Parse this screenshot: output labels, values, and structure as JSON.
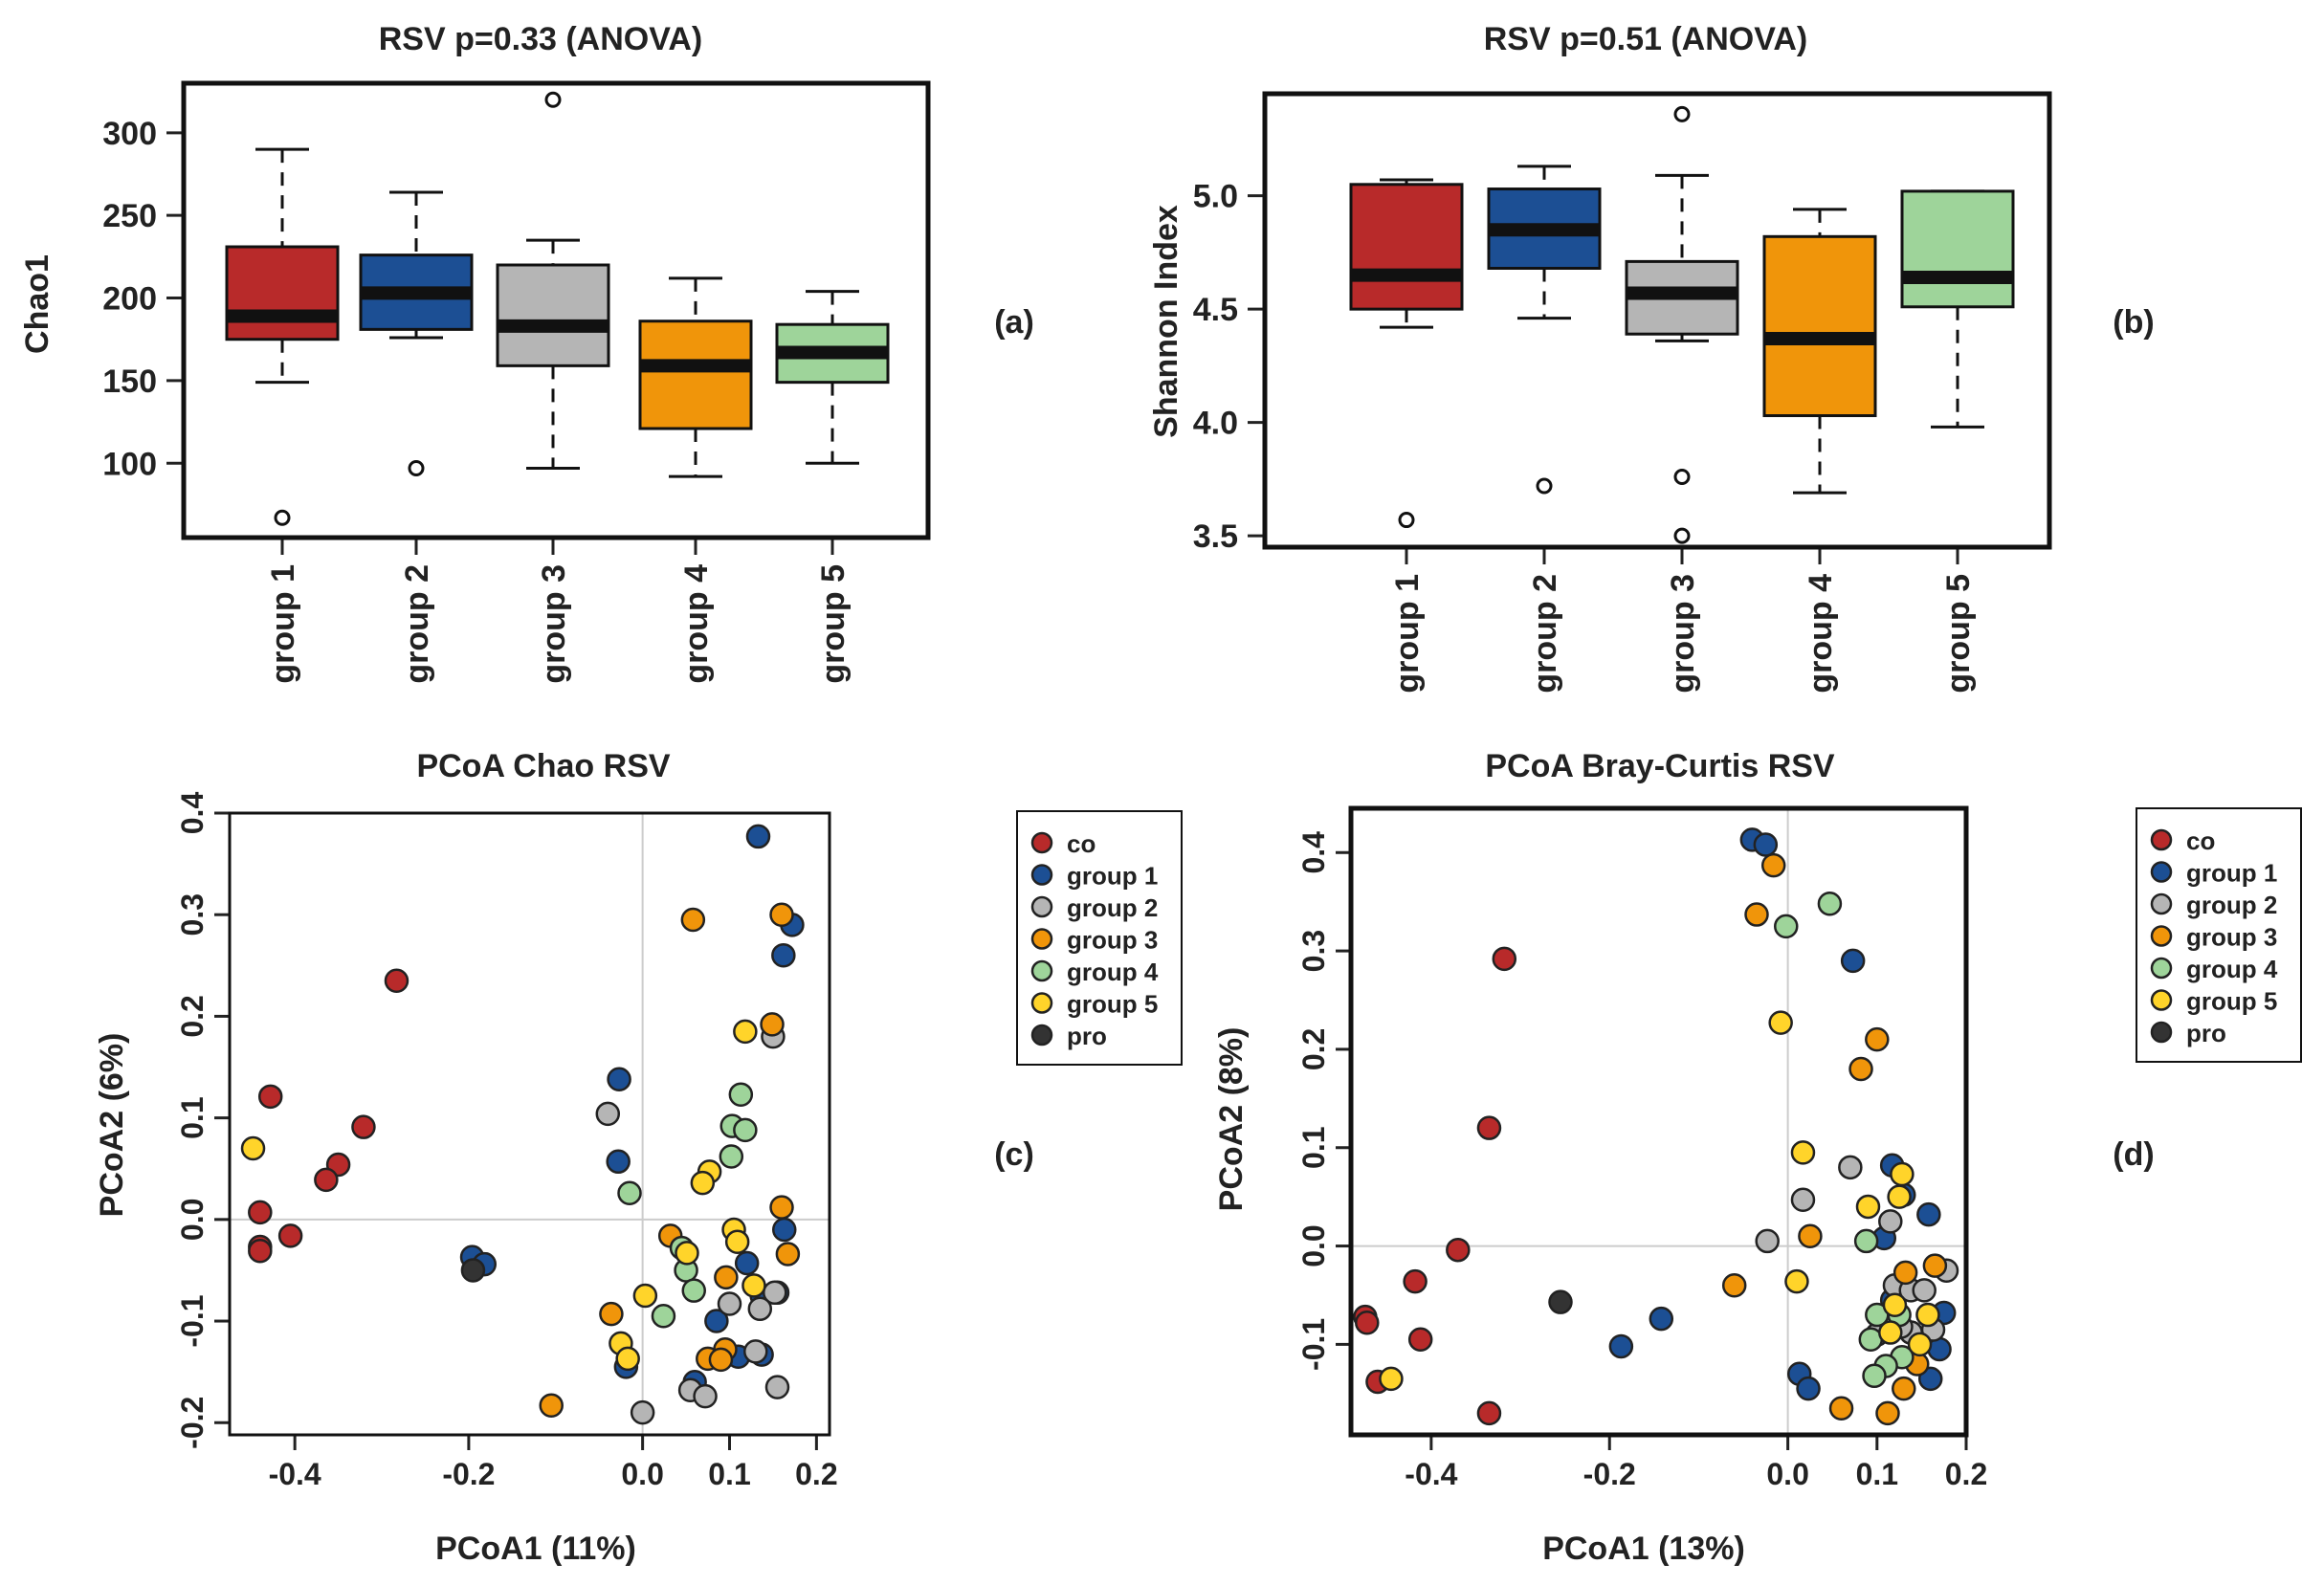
{
  "colors": {
    "co": "#b82a2a",
    "group 1": "#1c4f94",
    "group 2": "#b5b5b5",
    "group 3": "#f0950a",
    "group 4": "#9ed49a",
    "group 5": "#ffd42a",
    "pro": "#333333"
  },
  "chart_data": [
    {
      "id": "a",
      "type": "box",
      "panel_label": "(a)",
      "title": "RSV p=0.33 (ANOVA)",
      "xlabel": "",
      "ylabel": "Chao1",
      "ylim": [
        55,
        330
      ],
      "yticks": [
        100,
        150,
        200,
        250,
        300
      ],
      "categories": [
        "group 1",
        "group 2",
        "group 3",
        "group 4",
        "group 5"
      ],
      "boxes": [
        {
          "whislo": 149,
          "q1": 175,
          "med": 189,
          "q3": 231,
          "whishi": 290,
          "fliers": [
            67
          ],
          "color": "#b82a2a"
        },
        {
          "whislo": 176,
          "q1": 181,
          "med": 203,
          "q3": 226,
          "whishi": 264,
          "fliers": [
            97
          ],
          "color": "#1c4f94"
        },
        {
          "whislo": 97,
          "q1": 159,
          "med": 183,
          "q3": 220,
          "whishi": 235,
          "fliers": [
            320
          ],
          "color": "#b5b5b5"
        },
        {
          "whislo": 92,
          "q1": 121,
          "med": 159,
          "q3": 186,
          "whishi": 212,
          "fliers": [],
          "color": "#f0950a"
        },
        {
          "whislo": 100,
          "q1": 149,
          "med": 167,
          "q3": 184,
          "whishi": 204,
          "fliers": [],
          "color": "#9ed49a"
        }
      ]
    },
    {
      "id": "b",
      "type": "box",
      "panel_label": "(b)",
      "title": "RSV p=0.51 (ANOVA)",
      "xlabel": "",
      "ylabel": "Shannon Index",
      "ylim": [
        3.45,
        5.45
      ],
      "yticks": [
        3.5,
        4.0,
        4.5,
        5.0
      ],
      "ytick_labels": [
        "3.5",
        "4.0",
        "4.5",
        "5.0"
      ],
      "categories": [
        "group 1",
        "group 2",
        "group 3",
        "group 4",
        "group 5"
      ],
      "boxes": [
        {
          "whislo": 4.42,
          "q1": 4.5,
          "med": 4.65,
          "q3": 5.05,
          "whishi": 5.07,
          "fliers": [
            3.57
          ],
          "color": "#b82a2a"
        },
        {
          "whislo": 4.46,
          "q1": 4.68,
          "med": 4.85,
          "q3": 5.03,
          "whishi": 5.13,
          "fliers": [
            3.72
          ],
          "color": "#1c4f94"
        },
        {
          "whislo": 4.36,
          "q1": 4.39,
          "med": 4.57,
          "q3": 4.71,
          "whishi": 5.09,
          "fliers": [
            3.76,
            3.5,
            5.36
          ],
          "color": "#b5b5b5"
        },
        {
          "whislo": 3.69,
          "q1": 4.03,
          "med": 4.37,
          "q3": 4.82,
          "whishi": 4.94,
          "fliers": [],
          "color": "#f0950a"
        },
        {
          "whislo": 3.98,
          "q1": 4.51,
          "med": 4.64,
          "q3": 5.02,
          "whishi": 5.02,
          "fliers": [],
          "color": "#9ed49a"
        }
      ]
    },
    {
      "id": "c",
      "type": "scatter",
      "panel_label": "(c)",
      "title": "PCoA Chao  RSV",
      "xlabel": "PCoA1 (11%)",
      "ylabel": "PCoA2 (6%)",
      "xlim": [
        -0.475,
        0.215
      ],
      "ylim": [
        -0.212,
        0.4
      ],
      "xticks": [
        -0.4,
        -0.2,
        0.0,
        0.1,
        0.2
      ],
      "xtick_labels": [
        "-0.4",
        "-0.2",
        "0.0",
        "0.1",
        "0.2"
      ],
      "yticks": [
        -0.2,
        -0.1,
        0.0,
        0.1,
        0.2,
        0.3,
        0.4
      ],
      "ytick_labels": [
        "-0.2",
        "-0.1",
        "0.0",
        "0.1",
        "0.2",
        "0.3",
        "0.4"
      ],
      "legend_position": "right",
      "series": [
        {
          "name": "co",
          "points": [
            [
              -0.283,
              0.235
            ],
            [
              -0.428,
              0.121
            ],
            [
              -0.321,
              0.091
            ],
            [
              -0.35,
              0.054
            ],
            [
              -0.364,
              0.039
            ],
            [
              -0.44,
              0.007
            ],
            [
              -0.405,
              -0.016
            ],
            [
              -0.44,
              -0.027
            ],
            [
              -0.44,
              -0.031
            ]
          ]
        },
        {
          "name": "group 1",
          "points": [
            [
              0.133,
              0.377
            ],
            [
              0.172,
              0.29
            ],
            [
              0.162,
              0.26
            ],
            [
              -0.027,
              0.138
            ],
            [
              -0.028,
              0.057
            ],
            [
              -0.196,
              -0.037
            ],
            [
              -0.182,
              -0.044
            ],
            [
              -0.019,
              -0.145
            ],
            [
              0.163,
              -0.01
            ],
            [
              0.12,
              -0.043
            ],
            [
              0.085,
              -0.1
            ],
            [
              0.137,
              -0.075
            ],
            [
              0.06,
              -0.16
            ],
            [
              0.11,
              -0.135
            ],
            [
              0.137,
              -0.133
            ],
            [
              0.155,
              -0.072
            ]
          ]
        },
        {
          "name": "group 2",
          "points": [
            [
              -0.04,
              0.104
            ],
            [
              0.15,
              0.18
            ],
            [
              0.152,
              -0.072
            ],
            [
              0.135,
              -0.088
            ],
            [
              0.1,
              -0.083
            ],
            [
              0.13,
              -0.13
            ],
            [
              0.055,
              -0.168
            ],
            [
              0.072,
              -0.174
            ],
            [
              0.155,
              -0.165
            ],
            [
              0.0,
              -0.19
            ]
          ]
        },
        {
          "name": "group 3",
          "points": [
            [
              0.058,
              0.295
            ],
            [
              0.16,
              0.3
            ],
            [
              0.149,
              0.192
            ],
            [
              0.16,
              0.012
            ],
            [
              0.032,
              -0.016
            ],
            [
              0.096,
              -0.057
            ],
            [
              0.167,
              -0.034
            ],
            [
              -0.036,
              -0.093
            ],
            [
              0.075,
              -0.137
            ],
            [
              0.095,
              -0.128
            ],
            [
              0.09,
              -0.138
            ],
            [
              -0.105,
              -0.183
            ]
          ]
        },
        {
          "name": "group 4",
          "points": [
            [
              0.113,
              0.123
            ],
            [
              0.103,
              0.092
            ],
            [
              0.118,
              0.088
            ],
            [
              0.102,
              0.062
            ],
            [
              -0.015,
              0.026
            ],
            [
              0.045,
              -0.028
            ],
            [
              0.05,
              -0.05
            ],
            [
              0.059,
              -0.07
            ],
            [
              0.024,
              -0.095
            ]
          ]
        },
        {
          "name": "group 5",
          "points": [
            [
              0.118,
              0.185
            ],
            [
              -0.448,
              0.07
            ],
            [
              0.077,
              0.047
            ],
            [
              0.069,
              0.036
            ],
            [
              0.105,
              -0.01
            ],
            [
              0.109,
              -0.022
            ],
            [
              0.051,
              -0.033
            ],
            [
              0.128,
              -0.065
            ],
            [
              0.003,
              -0.075
            ],
            [
              -0.025,
              -0.122
            ],
            [
              -0.017,
              -0.137
            ]
          ]
        },
        {
          "name": "pro",
          "points": [
            [
              -0.195,
              -0.05
            ]
          ]
        }
      ]
    },
    {
      "id": "d",
      "type": "scatter",
      "panel_label": "(d)",
      "title": "PCoA Bray-Curtis  RSV",
      "xlabel": "PCoA1 (13%)",
      "ylabel": "PCoA2 (8%)",
      "xlim": [
        -0.49,
        0.2
      ],
      "ylim": [
        -0.192,
        0.445
      ],
      "xticks": [
        -0.4,
        -0.2,
        0.0,
        0.1,
        0.2
      ],
      "xtick_labels": [
        "-0.4",
        "-0.2",
        "0.0",
        "0.1",
        "0.2"
      ],
      "yticks": [
        -0.1,
        0.0,
        0.1,
        0.2,
        0.3,
        0.4
      ],
      "ytick_labels": [
        "-0.1",
        "0.0",
        "0.1",
        "0.2",
        "0.3",
        "0.4"
      ],
      "legend_position": "right",
      "series": [
        {
          "name": "co",
          "points": [
            [
              -0.318,
              0.292
            ],
            [
              -0.335,
              0.12
            ],
            [
              -0.37,
              -0.004
            ],
            [
              -0.418,
              -0.036
            ],
            [
              -0.474,
              -0.072
            ],
            [
              -0.472,
              -0.078
            ],
            [
              -0.412,
              -0.095
            ],
            [
              -0.46,
              -0.138
            ],
            [
              -0.335,
              -0.17
            ]
          ]
        },
        {
          "name": "group 1",
          "points": [
            [
              -0.04,
              0.413
            ],
            [
              -0.025,
              0.408
            ],
            [
              0.073,
              0.29
            ],
            [
              0.117,
              0.082
            ],
            [
              0.13,
              0.052
            ],
            [
              0.108,
              0.008
            ],
            [
              0.158,
              0.032
            ],
            [
              0.117,
              -0.055
            ],
            [
              0.175,
              -0.068
            ],
            [
              0.16,
              -0.095
            ],
            [
              0.15,
              -0.097
            ],
            [
              0.17,
              -0.105
            ],
            [
              0.16,
              -0.135
            ],
            [
              0.013,
              -0.13
            ],
            [
              0.023,
              -0.145
            ],
            [
              -0.187,
              -0.102
            ],
            [
              -0.142,
              -0.074
            ]
          ]
        },
        {
          "name": "group 2",
          "points": [
            [
              0.07,
              0.08
            ],
            [
              0.017,
              0.047
            ],
            [
              -0.023,
              0.005
            ],
            [
              0.115,
              0.025
            ],
            [
              0.12,
              -0.04
            ],
            [
              0.138,
              -0.045
            ],
            [
              0.178,
              -0.025
            ],
            [
              0.153,
              -0.045
            ],
            [
              0.138,
              -0.088
            ],
            [
              0.163,
              -0.085
            ],
            [
              0.127,
              -0.082
            ],
            [
              0.1,
              -0.09
            ]
          ]
        },
        {
          "name": "group 3",
          "points": [
            [
              -0.016,
              0.387
            ],
            [
              -0.035,
              0.337
            ],
            [
              0.1,
              0.21
            ],
            [
              0.082,
              0.18
            ],
            [
              0.025,
              0.01
            ],
            [
              -0.06,
              -0.04
            ],
            [
              0.132,
              -0.027
            ],
            [
              0.165,
              -0.02
            ],
            [
              0.13,
              -0.145
            ],
            [
              0.112,
              -0.17
            ],
            [
              0.06,
              -0.165
            ],
            [
              0.145,
              -0.12
            ]
          ]
        },
        {
          "name": "group 4",
          "points": [
            [
              0.047,
              0.348
            ],
            [
              -0.002,
              0.325
            ],
            [
              0.088,
              0.005
            ],
            [
              0.1,
              -0.07
            ],
            [
              0.125,
              -0.07
            ],
            [
              0.093,
              -0.095
            ],
            [
              0.128,
              -0.113
            ],
            [
              0.11,
              -0.122
            ],
            [
              0.097,
              -0.132
            ]
          ]
        },
        {
          "name": "group 5",
          "points": [
            [
              -0.008,
              0.227
            ],
            [
              0.017,
              0.095
            ],
            [
              0.09,
              0.04
            ],
            [
              0.128,
              0.073
            ],
            [
              0.125,
              0.05
            ],
            [
              0.01,
              -0.036
            ],
            [
              0.12,
              -0.06
            ],
            [
              0.157,
              -0.07
            ],
            [
              0.115,
              -0.088
            ],
            [
              0.148,
              -0.1
            ],
            [
              -0.445,
              -0.135
            ]
          ]
        },
        {
          "name": "pro",
          "points": [
            [
              -0.255,
              -0.057
            ]
          ]
        }
      ]
    }
  ],
  "legend_entries": [
    "co",
    "group 1",
    "group 2",
    "group 3",
    "group 4",
    "group 5",
    "pro"
  ]
}
